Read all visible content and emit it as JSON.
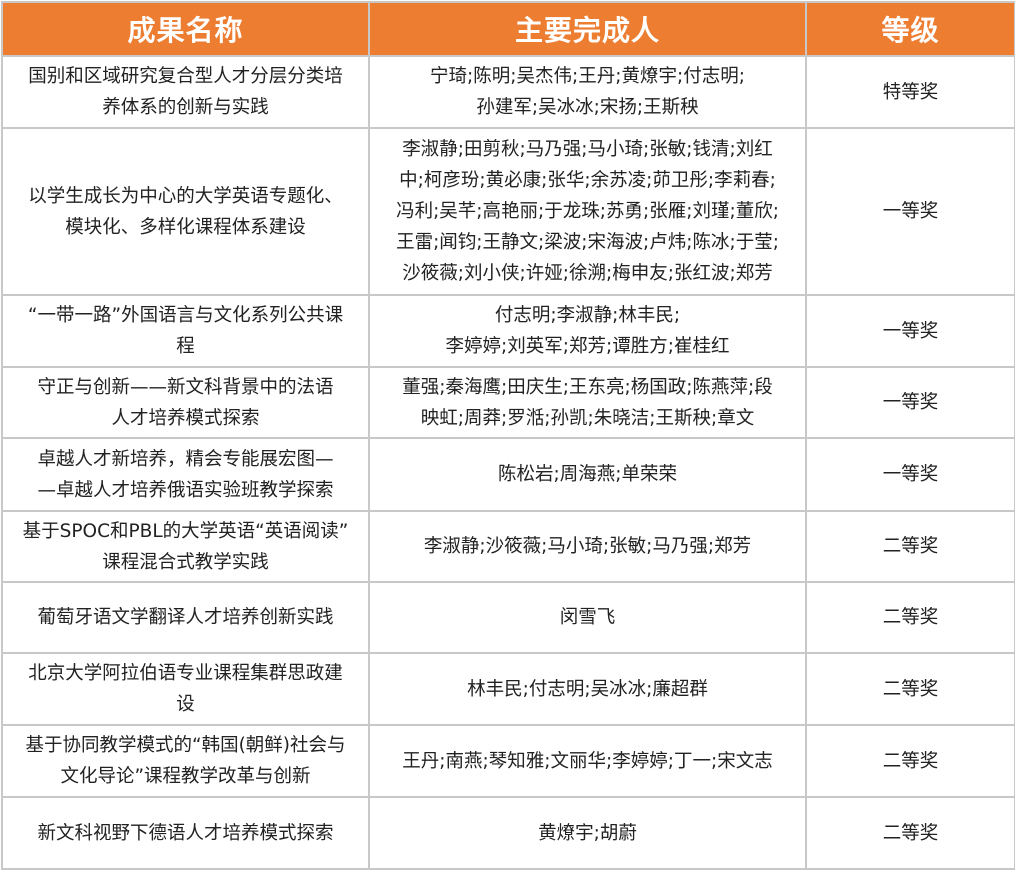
{
  "header": {
    "name": "成果名称",
    "people": "主要完成人",
    "level": "等级"
  },
  "accent_color": "#ED7D31",
  "rows": [
    {
      "name": "国别和区域研究复合型人才分层分类培\n养体系的创新与实践",
      "people": "宁琦;陈明;吴杰伟;王丹;黄燎宇;付志明;\n孙建军;吴冰冰;宋扬;王斯秧",
      "level": "特等奖"
    },
    {
      "name": "以学生成长为中心的大学英语专题化、\n模块化、多样化课程体系建设",
      "people": "李淑静;田剪秋;马乃强;马小琦;张敏;钱清;刘红\n中;柯彦玢;黄必康;张华;余苏凌;茆卫彤;李莉春;\n冯利;吴芊;高艳丽;于龙珠;苏勇;张雁;刘瑾;董欣;\n王雷;闻钧;王静文;梁波;宋海波;卢炜;陈冰;于莹;\n沙筱薇;刘小侠;许娅;徐溯;梅申友;张红波;郑芳",
      "level": "一等奖"
    },
    {
      "name": "“一带一路”外国语言与文化系列公共课\n程",
      "people": "付志明;李淑静;林丰民;\n李婷婷;刘英军;郑芳;谭胜方;崔桂红",
      "level": "一等奖"
    },
    {
      "name": "守正与创新——新文科背景中的法语\n人才培养模式探索",
      "people": "董强;秦海鹰;田庆生;王东亮;杨国政;陈燕萍;段\n映虹;周莽;罗湉;孙凯;朱晓洁;王斯秧;章文",
      "level": "一等奖"
    },
    {
      "name": "卓越人才新培养，精会专能展宏图—\n—卓越人才培养俄语实验班教学探索",
      "people": "陈松岩;周海燕;单荣荣",
      "level": "一等奖"
    },
    {
      "name": "基于SPOC和PBL的大学英语“英语阅读”\n课程混合式教学实践",
      "people": "李淑静;沙筱薇;马小琦;张敏;马乃强;郑芳",
      "level": "二等奖"
    },
    {
      "name": "葡萄牙语文学翻译人才培养创新实践",
      "people": "闵雪飞",
      "level": "二等奖"
    },
    {
      "name": "北京大学阿拉伯语专业课程集群思政建\n设",
      "people": "林丰民;付志明;吴冰冰;廉超群",
      "level": "二等奖"
    },
    {
      "name": "基于协同教学模式的“韩国(朝鲜)社会与\n文化导论”课程教学改革与创新",
      "people": "王丹;南燕;琴知雅;文丽华;李婷婷;丁一;宋文志",
      "level": "二等奖"
    },
    {
      "name": "新文科视野下德语人才培养模式探索",
      "people": "黄燎宇;胡蔚",
      "level": "二等奖"
    }
  ]
}
